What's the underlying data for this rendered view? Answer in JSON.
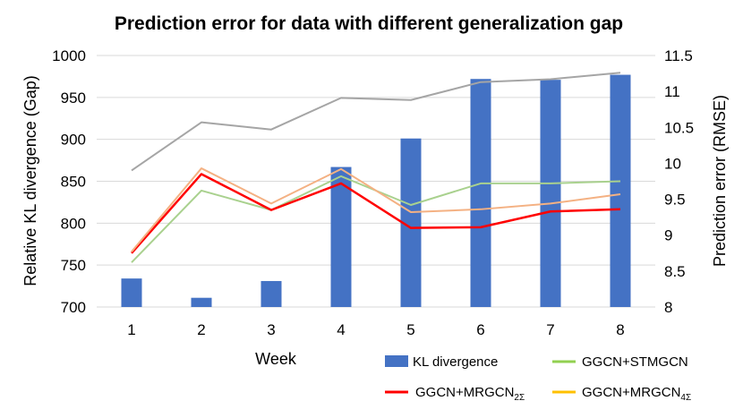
{
  "chart_data": {
    "type": "bar+line",
    "title": "Prediction error for data with different generalization gap",
    "xlabel": "Week",
    "ylabel_left": "Relative KL divergence (Gap)",
    "ylabel_right": "Prediction error (RMSE)",
    "categories": [
      "1",
      "2",
      "3",
      "4",
      "5",
      "6",
      "7",
      "8"
    ],
    "y_left": {
      "min": 700,
      "max": 1000,
      "ticks": [
        "700",
        "750",
        "800",
        "850",
        "900",
        "950",
        "1000"
      ],
      "tick_values": [
        700,
        750,
        800,
        850,
        900,
        950,
        1000
      ]
    },
    "y_right": {
      "min": 8,
      "max": 11.5,
      "ticks": [
        "8",
        "8.5",
        "9",
        "9.5",
        "10",
        "10.5",
        "11",
        "11.5"
      ],
      "tick_values": [
        8,
        8.5,
        9,
        9.5,
        10,
        10.5,
        11,
        11.5
      ]
    },
    "bars": {
      "name": "KL divergence",
      "color": "#4472C4",
      "axis": "left",
      "values": [
        734,
        711,
        731,
        867,
        901,
        972,
        971,
        977
      ]
    },
    "lines": [
      {
        "name": "Top grey series",
        "color": "#A5A5A5",
        "axis": "right",
        "values": [
          9.9,
          10.57,
          10.47,
          10.91,
          10.88,
          11.13,
          11.17,
          11.26
        ]
      },
      {
        "name": "GGCN+STMGCN",
        "color": "#A9D18E",
        "axis": "right",
        "values": [
          8.62,
          9.62,
          9.35,
          9.82,
          9.42,
          9.72,
          9.72,
          9.75
        ]
      },
      {
        "name_base": "GGCN+MRGCN",
        "name_sub": "2Σ",
        "color": "#FF0000",
        "axis": "right",
        "values": [
          8.75,
          9.85,
          9.35,
          9.72,
          9.1,
          9.11,
          9.33,
          9.36
        ]
      },
      {
        "name": "Orange series",
        "color": "#F4B183",
        "axis": "right",
        "values": [
          8.77,
          9.93,
          9.44,
          9.92,
          9.32,
          9.36,
          9.44,
          9.57
        ]
      }
    ],
    "legend": [
      {
        "label": "KL divergence",
        "color": "#4472C4",
        "marker": "bar"
      },
      {
        "label": "GGCN+STMGCN",
        "color": "#92D050",
        "marker": "line"
      },
      {
        "label_base": "GGCN+MRGCN",
        "label_sub": "2Σ",
        "color": "#FF0000",
        "marker": "line"
      },
      {
        "label_base": "GGCN+MRGCN",
        "label_sub": "4Σ",
        "color": "#FFC000",
        "marker": "line"
      }
    ]
  }
}
